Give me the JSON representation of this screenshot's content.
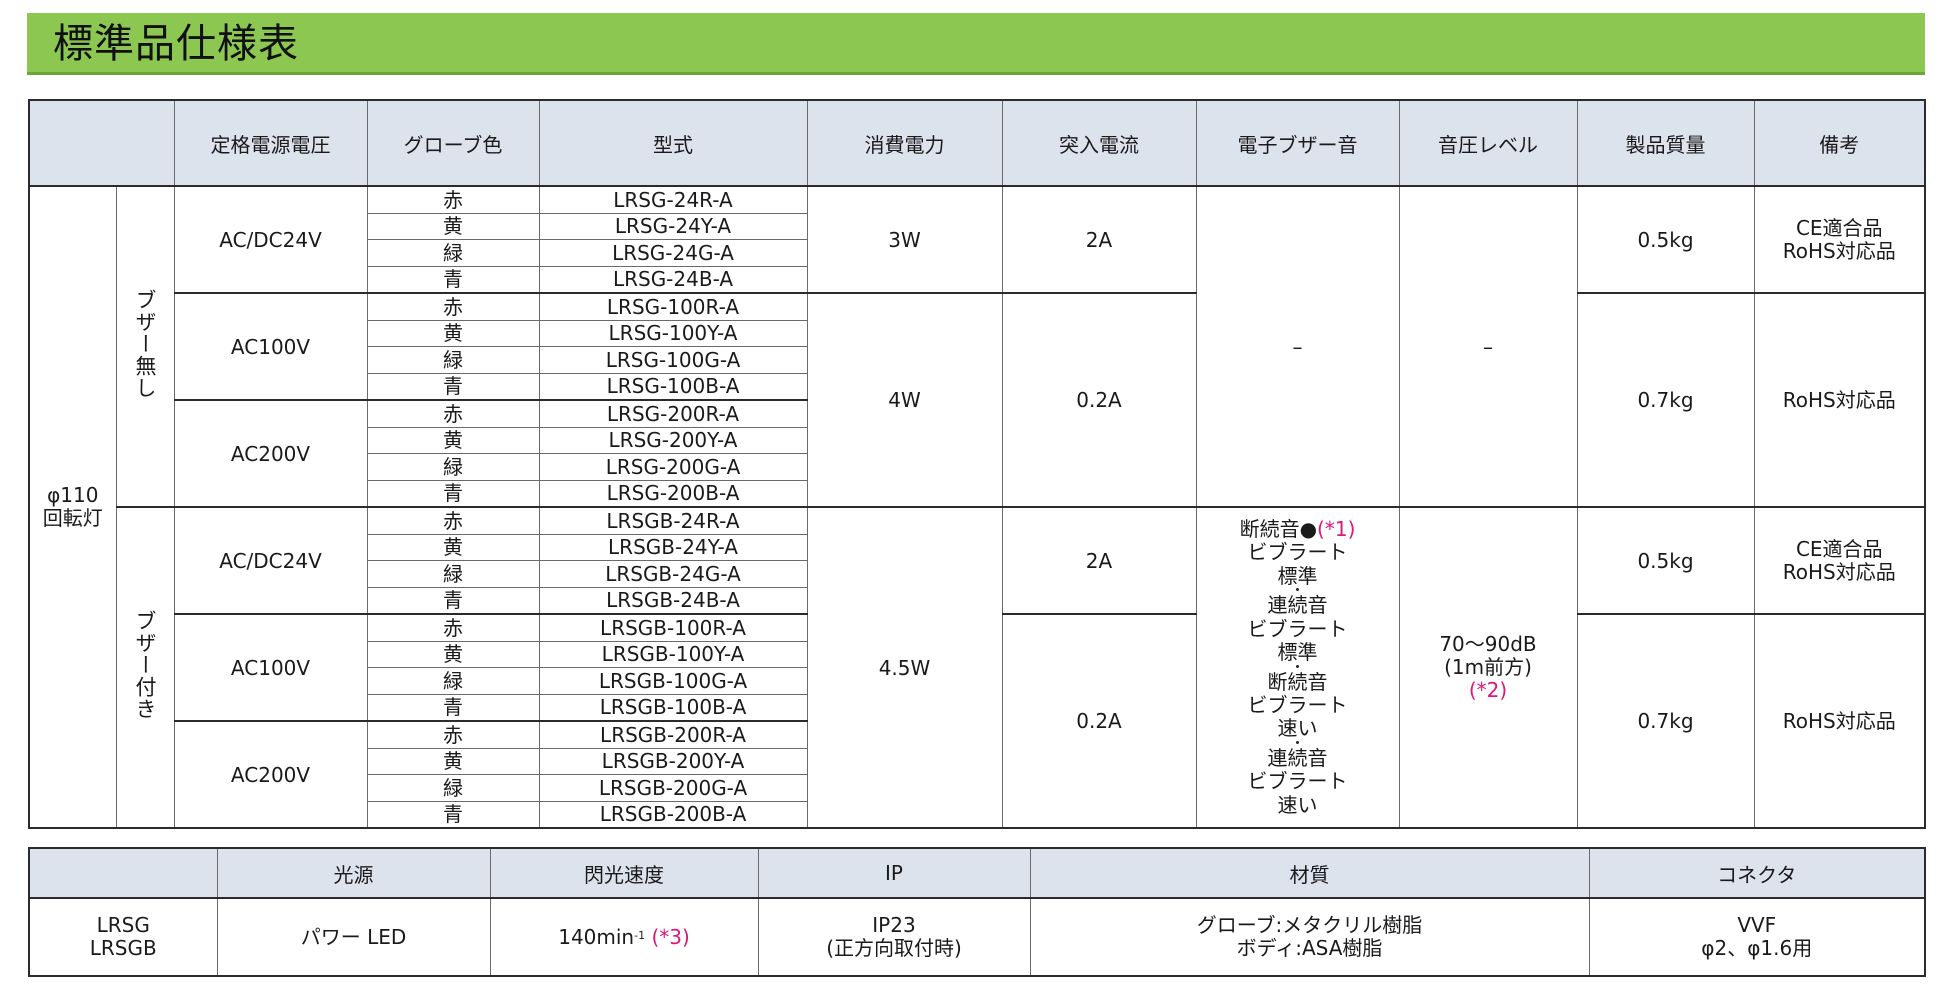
{
  "title": "標準品仕様表",
  "spec_table": {
    "headers": [
      "",
      "定格電源電圧",
      "グローブ色",
      "型式",
      "消費電力",
      "突入電流",
      "電子ブザー音",
      "音圧レベル",
      "製品質量",
      "備考"
    ],
    "product": [
      "φ110",
      "回転灯"
    ],
    "buzzer_none_label": "ブザー無し",
    "buzzer_with_label": "ブザー付き",
    "colors": [
      "赤",
      "黄",
      "緑",
      "青"
    ],
    "groups": [
      {
        "voltage": "AC/DC24V",
        "models": [
          "LRSG-24R-A",
          "LRSG-24Y-A",
          "LRSG-24G-A",
          "LRSG-24B-A"
        ]
      },
      {
        "voltage": "AC100V",
        "models": [
          "LRSG-100R-A",
          "LRSG-100Y-A",
          "LRSG-100G-A",
          "LRSG-100B-A"
        ]
      },
      {
        "voltage": "AC200V",
        "models": [
          "LRSG-200R-A",
          "LRSG-200Y-A",
          "LRSG-200G-A",
          "LRSG-200B-A"
        ]
      },
      {
        "voltage": "AC/DC24V",
        "models": [
          "LRSGB-24R-A",
          "LRSGB-24Y-A",
          "LRSGB-24G-A",
          "LRSGB-24B-A"
        ]
      },
      {
        "voltage": "AC100V",
        "models": [
          "LRSGB-100R-A",
          "LRSGB-100Y-A",
          "LRSGB-100G-A",
          "LRSGB-100B-A"
        ]
      },
      {
        "voltage": "AC200V",
        "models": [
          "LRSGB-200R-A",
          "LRSGB-200Y-A",
          "LRSGB-200G-A",
          "LRSGB-200B-A"
        ]
      }
    ],
    "power": [
      "3W",
      "4W",
      "4.5W"
    ],
    "inrush": [
      "2A",
      "0.2A",
      "2A",
      "0.2A"
    ],
    "buzzer_none_value": "–",
    "spl_none_value": "–",
    "buzzer_with": {
      "line1": "断続音●",
      "note1": "(*1)",
      "lines": [
        "ビブラート",
        "標準",
        "・",
        "連続音",
        "ビブラート",
        "標準",
        "・",
        "断続音",
        "ビブラート",
        "速い",
        "・",
        "連続音",
        "ビブラート",
        "速い"
      ]
    },
    "spl_with": {
      "line1": "70〜90dB",
      "line2": "(1m前方)",
      "note": "(*2)"
    },
    "weight": [
      "0.5kg",
      "0.7kg",
      "0.5kg",
      "0.7kg"
    ],
    "remarks_ce": [
      "CE適合品",
      "RoHS対応品"
    ],
    "remarks_rohs": "RoHS対応品"
  },
  "aux_table": {
    "headers": [
      "",
      "光源",
      "閃光速度",
      "IP",
      "材質",
      "コネクタ"
    ],
    "models": [
      "LRSG",
      "LRSGB"
    ],
    "light_source": "パワー LED",
    "flash_speed": "140min",
    "flash_sup": "-1",
    "flash_note": "(*3)",
    "ip": [
      "IP23",
      "(正方向取付時)"
    ],
    "material": [
      "グローブ:メタクリル樹脂",
      "ボディ:ASA樹脂"
    ],
    "connector": [
      "VVF",
      "φ2、φ1.6用"
    ]
  }
}
